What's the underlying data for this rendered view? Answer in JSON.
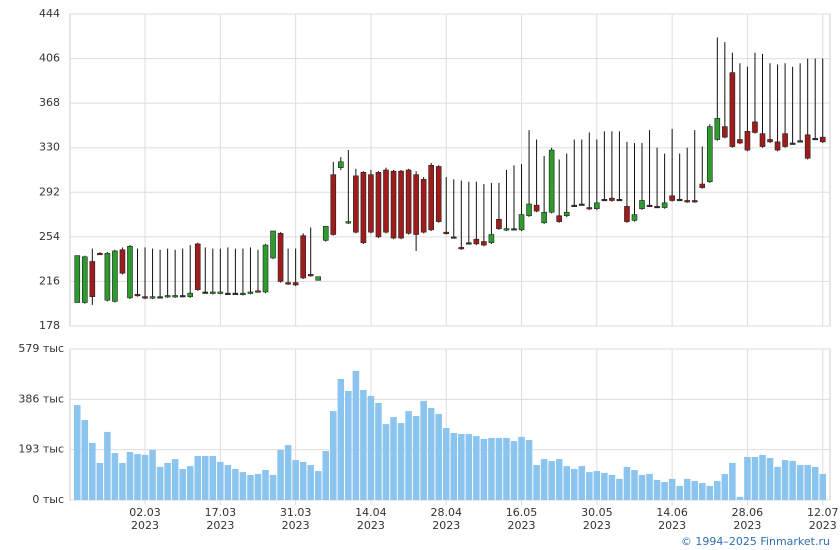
{
  "chart_data": [
    {
      "type": "candlestick",
      "up_color": "#2e9b2e",
      "down_color": "#a01c1c",
      "flat_color": "#333333",
      "grid": true,
      "ylim": [
        178,
        444
      ],
      "yticks": [
        178,
        216,
        254,
        292,
        330,
        368,
        406,
        444
      ],
      "open": [
        198,
        198,
        233,
        240,
        200,
        199,
        243,
        202,
        205,
        203,
        202,
        203,
        203,
        203,
        204,
        203,
        248,
        207,
        206,
        206,
        206,
        206,
        205,
        206,
        208,
        207,
        236,
        257,
        215,
        215,
        255,
        222,
        217,
        251,
        307,
        313,
        266,
        306,
        309,
        307,
        309,
        311,
        310,
        310,
        311,
        307,
        303,
        315,
        314,
        258,
        254,
        245,
        249,
        252,
        250,
        249,
        269,
        260,
        261,
        260,
        272,
        281,
        266,
        275,
        272,
        272,
        281,
        282,
        279,
        278,
        286,
        287,
        286,
        280,
        268,
        278,
        281,
        280,
        279,
        289,
        286,
        285,
        285,
        299,
        301,
        337,
        348,
        394,
        337,
        344,
        352,
        342,
        337,
        335,
        342,
        334,
        336,
        341,
        338,
        339
      ],
      "high": [
        238,
        238,
        244,
        241,
        241,
        243,
        245,
        247,
        244,
        245,
        244,
        243,
        244,
        243,
        244,
        247,
        249,
        245,
        244,
        244,
        245,
        244,
        244,
        245,
        243,
        248,
        259,
        258,
        244,
        244,
        257,
        262,
        220,
        263,
        318,
        322,
        328,
        312,
        310,
        311,
        310,
        313,
        311,
        311,
        312,
        310,
        305,
        317,
        315,
        305,
        303,
        302,
        301,
        301,
        299,
        300,
        300,
        311,
        315,
        316,
        345,
        337,
        323,
        330,
        320,
        325,
        337,
        337,
        343,
        337,
        344,
        344,
        344,
        335,
        334,
        334,
        345,
        330,
        325,
        346,
        325,
        330,
        345,
        331,
        350,
        424,
        420,
        411,
        402,
        399,
        411,
        410,
        402,
        401,
        402,
        399,
        402,
        406,
        406,
        406
      ],
      "low": [
        198,
        197,
        196,
        239,
        199,
        198,
        222,
        201,
        203,
        201,
        201,
        202,
        202,
        202,
        203,
        202,
        208,
        206,
        205,
        205,
        205,
        205,
        204,
        205,
        207,
        206,
        235,
        215,
        213,
        212,
        218,
        220,
        217,
        250,
        255,
        311,
        265,
        257,
        248,
        257,
        253,
        257,
        252,
        252,
        256,
        242,
        257,
        259,
        266,
        256,
        253,
        243,
        248,
        247,
        246,
        248,
        260,
        259,
        260,
        259,
        271,
        275,
        265,
        274,
        266,
        271,
        280,
        281,
        277,
        277,
        285,
        284,
        285,
        266,
        267,
        277,
        280,
        279,
        278,
        284,
        285,
        283,
        283,
        295,
        300,
        336,
        338,
        330,
        333,
        327,
        342,
        330,
        334,
        327,
        330,
        333,
        335,
        320,
        337,
        334
      ],
      "close": [
        238,
        237,
        203,
        239,
        240,
        242,
        223,
        246,
        204,
        202,
        203,
        203,
        204,
        204,
        204,
        206,
        209,
        207,
        207,
        207,
        206,
        206,
        206,
        207,
        207,
        247,
        259,
        216,
        214,
        213,
        219,
        221,
        220,
        263,
        256,
        318,
        267,
        258,
        249,
        258,
        254,
        258,
        253,
        253,
        257,
        256,
        258,
        260,
        267,
        257,
        254,
        244,
        249,
        248,
        247,
        256,
        261,
        261,
        261,
        273,
        282,
        276,
        275,
        328,
        267,
        275,
        281,
        282,
        278,
        283,
        286,
        285,
        286,
        267,
        273,
        285,
        281,
        280,
        283,
        285,
        286,
        284,
        284,
        296,
        348,
        355,
        339,
        331,
        334,
        328,
        343,
        331,
        335,
        328,
        331,
        334,
        336,
        321,
        338,
        335
      ]
    },
    {
      "type": "bar",
      "color": "#8cc4f0",
      "ylim": [
        0,
        579
      ],
      "yticks": [
        {
          "value": 0,
          "label": "0 тыс"
        },
        {
          "value": 193,
          "label": "193 тыс"
        },
        {
          "value": 386,
          "label": "386 тыс"
        },
        {
          "value": 579,
          "label": "579 тыс"
        }
      ],
      "categories": [
        null,
        null,
        null,
        null,
        null,
        null,
        null,
        null,
        null,
        "02.03\n2023",
        null,
        null,
        null,
        null,
        null,
        null,
        null,
        null,
        null,
        "17.03\n2023",
        null,
        null,
        null,
        null,
        null,
        null,
        null,
        null,
        null,
        "31.03\n2023",
        null,
        null,
        null,
        null,
        null,
        null,
        null,
        null,
        null,
        "14.04\n2023",
        null,
        null,
        null,
        null,
        null,
        null,
        null,
        null,
        null,
        "28.04\n2023",
        null,
        null,
        null,
        null,
        null,
        null,
        null,
        null,
        null,
        "16.05\n2023",
        null,
        null,
        null,
        null,
        null,
        null,
        null,
        null,
        null,
        "30.05\n2023",
        null,
        null,
        null,
        null,
        null,
        null,
        null,
        null,
        null,
        "14.06\n2023",
        null,
        null,
        null,
        null,
        null,
        null,
        null,
        null,
        null,
        "28.06\n2023",
        null,
        null,
        null,
        null,
        null,
        null,
        null,
        null,
        null,
        "12.07\n2023"
      ],
      "values": [
        364,
        307,
        219,
        142,
        261,
        180,
        142,
        184,
        176,
        173,
        192,
        127,
        142,
        157,
        119,
        130,
        169,
        169,
        169,
        146,
        134,
        119,
        107,
        96,
        100,
        115,
        96,
        192,
        211,
        153,
        146,
        134,
        111,
        188,
        341,
        464,
        418,
        495,
        422,
        399,
        372,
        291,
        318,
        295,
        341,
        322,
        380,
        353,
        330,
        276,
        257,
        253,
        253,
        245,
        234,
        238,
        238,
        238,
        226,
        242,
        230,
        134,
        157,
        150,
        157,
        130,
        119,
        130,
        107,
        111,
        104,
        96,
        81,
        127,
        115,
        96,
        100,
        77,
        69,
        81,
        54,
        81,
        73,
        65,
        54,
        73,
        100,
        142,
        12,
        165,
        165,
        173,
        161,
        127,
        153,
        150,
        134,
        134,
        127,
        100
      ]
    }
  ],
  "footer": "© 1994–2025 Finmarket.ru"
}
